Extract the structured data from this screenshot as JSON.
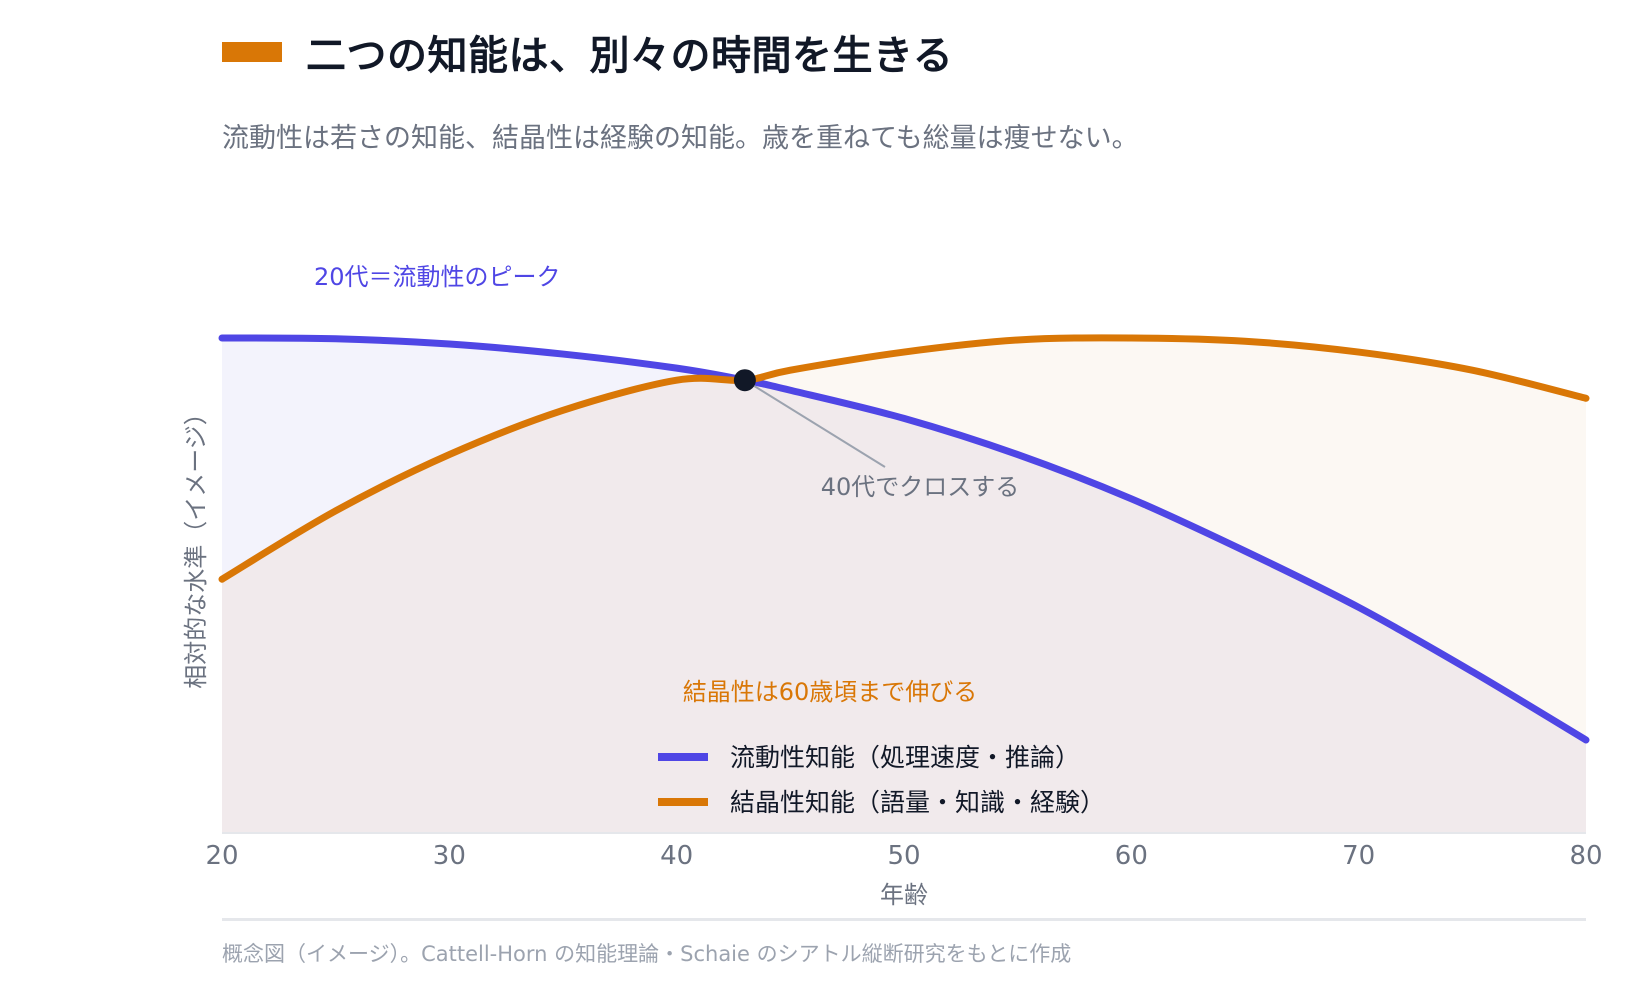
{
  "header": {
    "title": "二つの知能は、別々の時間を生きる",
    "subtitle": "流動性は若さの知能、結晶性は経験の知能。歳を重ねても総量は痩せない。",
    "accent_color": "#d97706"
  },
  "footnote": "概念図（イメージ）。Cattell-Horn の知能理論・Schaie のシアトル縦断研究をもとに作成",
  "chart_data": {
    "type": "area",
    "x": [
      20,
      25,
      30,
      35,
      40,
      43,
      45,
      50,
      55,
      60,
      65,
      70,
      75,
      80
    ],
    "xlabel": "年齢",
    "ylabel": "相対的な水準（イメージ）",
    "xlim": [
      20,
      80
    ],
    "ylim": [
      0,
      100
    ],
    "xticks": [
      20,
      30,
      40,
      50,
      60,
      70,
      80
    ],
    "grid": false,
    "legend_position": "bottom-center",
    "series": [
      {
        "name": "流動性知能（処理速度・推論）",
        "color": "#4f46e5",
        "fill": "#f1f1fb",
        "values": [
          100,
          99.8,
          98.5,
          96,
          92.5,
          89.5,
          87,
          80,
          71,
          60,
          47,
          33,
          17,
          0
        ]
      },
      {
        "name": "結晶性知能（語量・知識・経験）",
        "color": "#d97706",
        "fill": "#fcf7f1",
        "values": [
          40,
          57,
          71,
          82,
          89.5,
          89.5,
          92,
          96.5,
          99.5,
          100,
          99.2,
          96.5,
          92,
          85
        ]
      }
    ],
    "annotations": [
      {
        "text": "20代＝流動性のピーク",
        "x": 24,
        "y": 111,
        "color": "#4f46e5"
      },
      {
        "text": "40代でクロスする",
        "x": 43,
        "y": 89.5,
        "color": "#6b7280"
      },
      {
        "text": "結晶性は60歳頃まで伸びる",
        "x": 45,
        "y": 27.5,
        "color": "#d97706"
      }
    ]
  }
}
